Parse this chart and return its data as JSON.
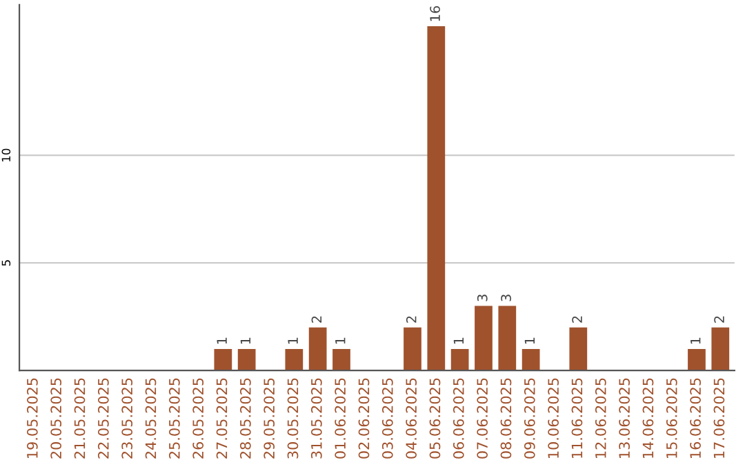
{
  "chart_data": {
    "type": "bar",
    "categories": [
      "19.05.2025",
      "20.05.2025",
      "21.05.2025",
      "22.05.2025",
      "23.05.2025",
      "24.05.2025",
      "25.05.2025",
      "26.05.2025",
      "27.05.2025",
      "28.05.2025",
      "29.05.2025",
      "30.05.2025",
      "31.05.2025",
      "01.06.2025",
      "02.06.2025",
      "03.06.2025",
      "04.06.2025",
      "05.06.2025",
      "06.06.2025",
      "07.06.2025",
      "08.06.2025",
      "09.06.2025",
      "10.06.2025",
      "11.06.2025",
      "12.06.2025",
      "13.06.2025",
      "14.06.2025",
      "15.06.2025",
      "16.06.2025",
      "17.06.2025"
    ],
    "values": [
      0,
      0,
      0,
      0,
      0,
      0,
      0,
      0,
      1,
      1,
      0,
      1,
      2,
      1,
      0,
      0,
      2,
      16,
      1,
      3,
      3,
      1,
      0,
      2,
      0,
      0,
      0,
      0,
      1,
      2
    ],
    "value_labels": [
      null,
      null,
      null,
      null,
      null,
      null,
      null,
      null,
      "1",
      "1",
      null,
      "1",
      "2",
      "1",
      null,
      null,
      "2",
      "16",
      "1",
      "3",
      "3",
      "1",
      null,
      "2",
      null,
      null,
      null,
      null,
      "1",
      "2"
    ],
    "color": "#a0522d",
    "ylim": [
      0,
      17
    ],
    "yticks": [
      5,
      10
    ],
    "grid": "y"
  }
}
